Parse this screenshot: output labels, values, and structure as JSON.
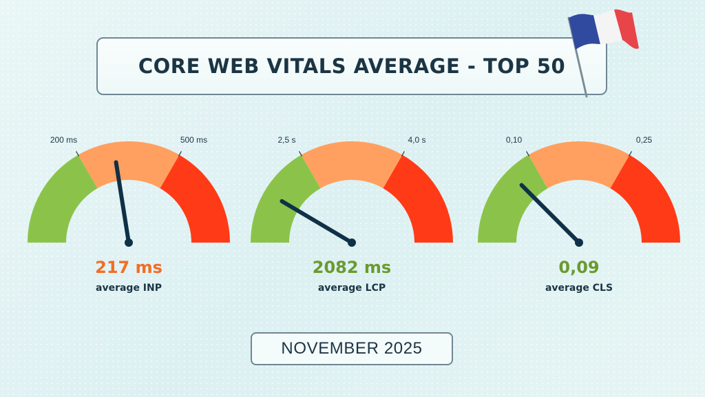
{
  "title": "CORE WEB VITALS AVERAGE - TOP 50",
  "date_label": "NOVEMBER 2025",
  "flag_icon": "france-flag-icon",
  "colors": {
    "good": "#8bc34a",
    "needs_improvement": "#ffa060",
    "poor": "#ff3b17",
    "needle": "#0f3147",
    "text_dark": "#1b3544"
  },
  "chart_data": [
    {
      "type": "gauge",
      "metric": "INP",
      "label": "average INP",
      "value_text": "217 ms",
      "value": 217,
      "value_color": "#f46d22",
      "thresholds": [
        200,
        500
      ],
      "threshold_labels": [
        "200 ms",
        "500 ms"
      ],
      "needle_fraction": 0.45
    },
    {
      "type": "gauge",
      "metric": "LCP",
      "label": "average LCP",
      "value_text": "2082 ms",
      "value": 2082,
      "value_color": "#6b9a2f",
      "thresholds": [
        2.5,
        4.0
      ],
      "threshold_labels": [
        "2,5 s",
        "4,0 s"
      ],
      "needle_fraction": 0.17
    },
    {
      "type": "gauge",
      "metric": "CLS",
      "label": "average CLS",
      "value_text": "0,09",
      "value": 0.09,
      "value_color": "#6b9a2f",
      "thresholds": [
        0.1,
        0.25
      ],
      "threshold_labels": [
        "0,10",
        "0,25"
      ],
      "needle_fraction": 0.25
    }
  ]
}
